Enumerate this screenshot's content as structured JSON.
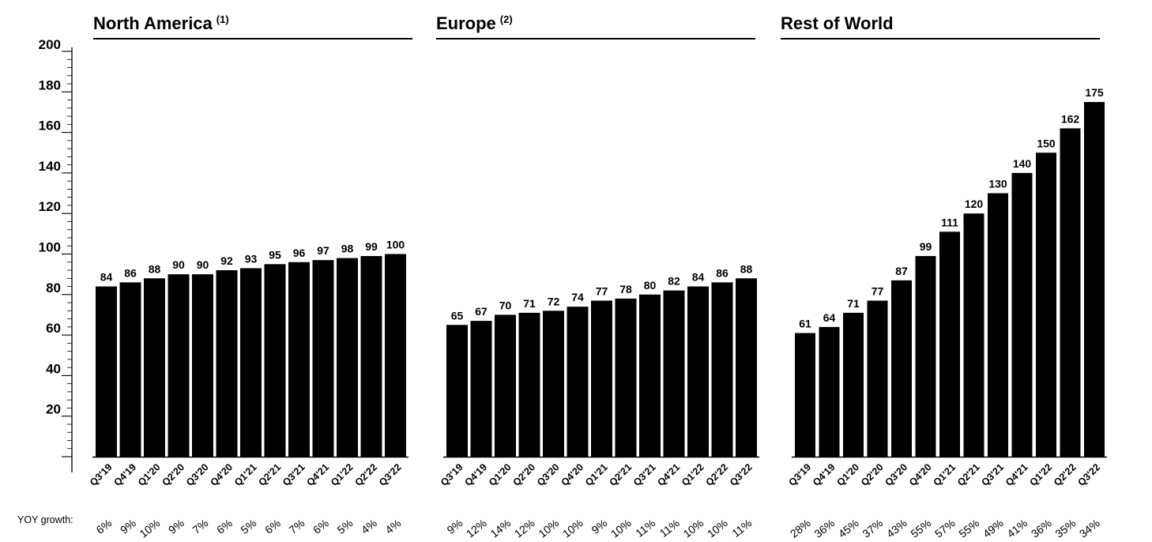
{
  "yoy_label": "YOY growth:",
  "chart_data": {
    "type": "bar",
    "ylim": [
      0,
      200
    ],
    "y_ticks": [
      20,
      40,
      60,
      80,
      100,
      120,
      140,
      160,
      180,
      200
    ],
    "y_tick_labels": [
      "20",
      "40",
      "60",
      "80",
      "100",
      "120",
      "140",
      "160",
      "180",
      "200"
    ],
    "grid": false,
    "categories": [
      "Q3'19",
      "Q4'19",
      "Q1'20",
      "Q2'20",
      "Q3'20",
      "Q4'20",
      "Q1'21",
      "Q2'21",
      "Q3'21",
      "Q4'21",
      "Q1'22",
      "Q2'22",
      "Q3'22"
    ],
    "panels": [
      {
        "title": "North America",
        "title_note": "(1)",
        "values": [
          84,
          86,
          88,
          90,
          90,
          92,
          93,
          95,
          96,
          97,
          98,
          99,
          100
        ],
        "yoy_growth": [
          "6%",
          "9%",
          "10%",
          "9%",
          "7%",
          "6%",
          "5%",
          "6%",
          "7%",
          "6%",
          "5%",
          "4%",
          "4%"
        ]
      },
      {
        "title": "Europe",
        "title_note": "(2)",
        "values": [
          65,
          67,
          70,
          71,
          72,
          74,
          77,
          78,
          80,
          82,
          84,
          86,
          88
        ],
        "yoy_growth": [
          "9%",
          "12%",
          "14%",
          "12%",
          "10%",
          "10%",
          "9%",
          "10%",
          "11%",
          "11%",
          "10%",
          "10%",
          "11%"
        ]
      },
      {
        "title": "Rest of World",
        "title_note": "",
        "values": [
          61,
          64,
          71,
          77,
          87,
          99,
          111,
          120,
          130,
          140,
          150,
          162,
          175
        ],
        "yoy_growth": [
          "28%",
          "36%",
          "45%",
          "37%",
          "43%",
          "55%",
          "57%",
          "55%",
          "49%",
          "41%",
          "36%",
          "35%",
          "34%"
        ]
      }
    ],
    "colors": {
      "bar": "#000000",
      "text": "#000000",
      "background": "#ffffff"
    }
  }
}
